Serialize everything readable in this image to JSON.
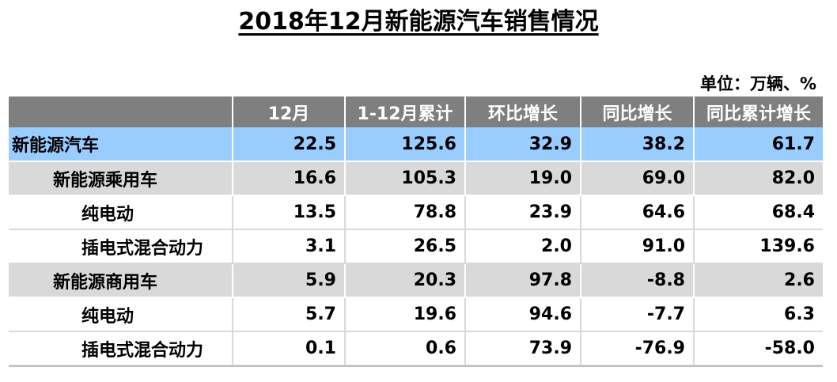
{
  "title": "2018年12月新能源汽车销售情况",
  "unit": "单位：万辆、%",
  "table": {
    "headers": [
      "",
      "12月",
      "1-12月累计",
      "环比增长",
      "同比增长",
      "同比累计增长"
    ],
    "rows": [
      {
        "name": "新能源汽车",
        "level": 0,
        "values": [
          "22.5",
          "125.6",
          "32.9",
          "38.2",
          "61.7"
        ]
      },
      {
        "name": "新能源乘用车",
        "level": 1,
        "values": [
          "16.6",
          "105.3",
          "19.0",
          "69.0",
          "82.0"
        ]
      },
      {
        "name": "纯电动",
        "level": 2,
        "values": [
          "13.5",
          "78.8",
          "23.9",
          "64.6",
          "68.4"
        ]
      },
      {
        "name": "插电式混合动力",
        "level": 2,
        "values": [
          "3.1",
          "26.5",
          "2.0",
          "91.0",
          "139.6"
        ]
      },
      {
        "name": "新能源商用车",
        "level": 1,
        "values": [
          "5.9",
          "20.3",
          "97.8",
          "-8.8",
          "2.6"
        ]
      },
      {
        "name": "纯电动",
        "level": 2,
        "values": [
          "5.7",
          "19.6",
          "94.6",
          "-7.7",
          "6.3"
        ]
      },
      {
        "name": "插电式混合动力",
        "level": 2,
        "values": [
          "0.1",
          "0.6",
          "73.9",
          "-76.9",
          "-58.0"
        ]
      }
    ]
  },
  "colors": {
    "header_bg": "#7f7f7f",
    "total_row_bg": "#99ccff",
    "category_row_bg": "#d9d9d9"
  }
}
